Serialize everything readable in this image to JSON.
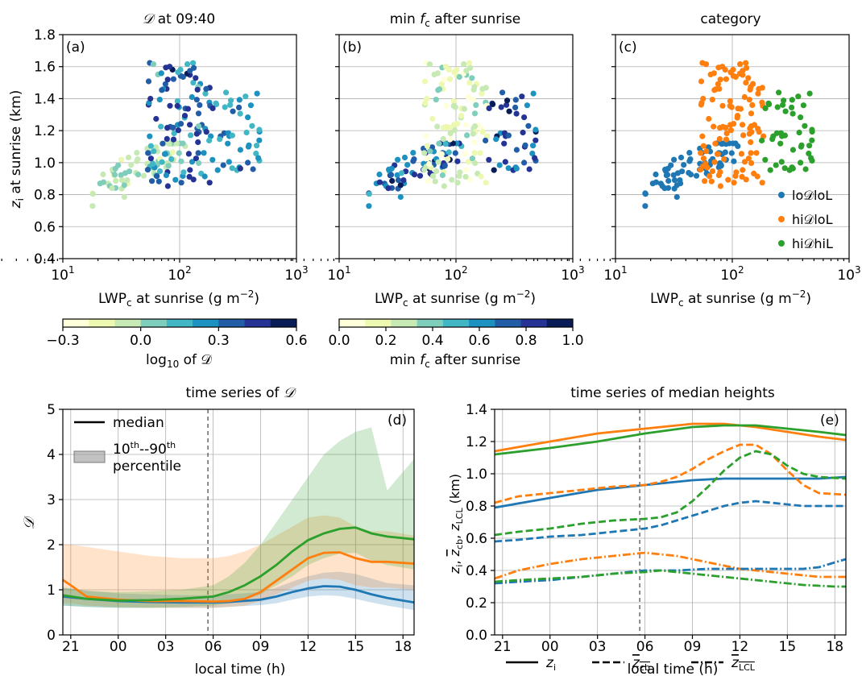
{
  "colors": {
    "lo": "#1f77b4",
    "hiLoL": "#ff7f0e",
    "hiHiL": "#2ca02c",
    "viridis_like": [
      "#ffffd9",
      "#edf8b1",
      "#c7e9b4",
      "#7fcdbb",
      "#41b6c4",
      "#1d91c0",
      "#225ea8",
      "#253494",
      "#081d58"
    ]
  },
  "chart_data": [
    {
      "panel_label": "(a)",
      "type": "scatter",
      "title_prefix": "𝒟",
      "title_suffix": " at 09:40",
      "xlabel": "LWP",
      "xlabel_sub": "c",
      "xlabel_tail": " at sunrise (g m",
      "xlabel_sup": "−2",
      "xlabel_close": ")",
      "ylabel": "z",
      "ylabel_sub": "i",
      "ylabel_tail": " at sunrise (km)",
      "xscale": "log",
      "xlim": [
        10,
        1000
      ],
      "ylim": [
        0.4,
        1.8
      ],
      "xticks": [
        "10",
        "10",
        "10"
      ],
      "xticks_sup": [
        "1",
        "2",
        "3"
      ],
      "yticks": [
        "0.4",
        "0.6",
        "0.8",
        "1.0",
        "1.2",
        "1.4",
        "1.6",
        "1.8"
      ],
      "grid": true,
      "colorbar": {
        "label_pre": "log",
        "label_sub": "10",
        "label_post": " of 𝒟",
        "ticks": [
          "−0.3",
          "0.0",
          "0.3",
          "0.6"
        ],
        "range": [
          -0.3,
          0.6
        ]
      }
    },
    {
      "panel_label": "(b)",
      "type": "scatter",
      "title_pre": "min ",
      "title_f": "f",
      "title_sub": "c",
      "title_post": " after sunrise",
      "xscale": "log",
      "xlim": [
        10,
        1000
      ],
      "ylim": [
        0.4,
        1.8
      ],
      "colorbar": {
        "label_pre": "min ",
        "label_f": "f",
        "label_sub": "c",
        "label_post": " after sunrise",
        "ticks": [
          "0.0",
          "0.2",
          "0.4",
          "0.6",
          "0.8",
          "1.0"
        ],
        "range": [
          0,
          1
        ]
      }
    },
    {
      "panel_label": "(c)",
      "type": "scatter",
      "title": "category",
      "xscale": "log",
      "xlim": [
        10,
        1000
      ],
      "ylim": [
        0.4,
        1.8
      ],
      "legend_placement": "lower-right",
      "legend": [
        {
          "name": "lo𝒟loL",
          "color_key": "lo"
        },
        {
          "name": "hi𝒟loL",
          "color_key": "hiLoL"
        },
        {
          "name": "hi𝒟hiL",
          "color_key": "hiHiL"
        }
      ],
      "clusters": {
        "lo": {
          "logx_range": [
            1.25,
            2.05
          ],
          "y_center_fn": "0.4 + 0.38*logx",
          "spread": 0.12
        },
        "hiLoL": {
          "logx_range": [
            1.75,
            2.3
          ],
          "y_range": [
            0.85,
            1.65
          ]
        },
        "hiHiL": {
          "logx_range": [
            2.25,
            2.7
          ],
          "y_range": [
            0.95,
            1.45
          ]
        }
      }
    },
    {
      "panel_label": "(d)",
      "type": "line",
      "title_pre": "time series of ",
      "title_d": "𝒟",
      "xlabel": "local time (h)",
      "ylabel": "𝒟",
      "xlim": [
        20.5,
        42.7
      ],
      "ylim": [
        0,
        5
      ],
      "xticks": [
        "21",
        "00",
        "03",
        "06",
        "09",
        "12",
        "15",
        "18"
      ],
      "xtick_values": [
        21,
        24,
        27,
        30,
        33,
        36,
        39,
        42
      ],
      "yticks": [
        "0",
        "1",
        "2",
        "3",
        "4",
        "5"
      ],
      "vline_at": 29.67,
      "legend": {
        "median": "median",
        "pct_a": "10",
        "pct_a_sup": "th",
        "pct_sep": "--90",
        "pct_b_sup": "th",
        "pct_line2": "percentile"
      },
      "series": [
        {
          "color_key": "lo",
          "x": [
            20.5,
            22,
            24,
            26,
            28,
            30,
            31,
            33,
            34,
            35,
            36,
            37,
            38,
            39,
            40,
            41,
            42.7
          ],
          "median": [
            0.85,
            0.8,
            0.75,
            0.73,
            0.72,
            0.72,
            0.73,
            0.78,
            0.85,
            0.95,
            1.03,
            1.08,
            1.07,
            1.0,
            0.9,
            0.82,
            0.72
          ],
          "p10": [
            0.65,
            0.62,
            0.6,
            0.6,
            0.6,
            0.6,
            0.62,
            0.66,
            0.7,
            0.78,
            0.85,
            0.88,
            0.86,
            0.8,
            0.72,
            0.65,
            0.55
          ],
          "p90": [
            1.05,
            0.98,
            0.92,
            0.9,
            0.88,
            0.88,
            0.9,
            0.95,
            1.05,
            1.18,
            1.3,
            1.38,
            1.4,
            1.35,
            1.25,
            1.15,
            1.1
          ]
        },
        {
          "color_key": "hiLoL",
          "x": [
            20.5,
            21,
            22,
            24,
            26,
            28,
            30,
            31,
            32,
            33,
            34,
            35,
            36,
            37,
            38,
            39,
            40,
            41,
            42.7
          ],
          "median": [
            1.22,
            1.1,
            0.85,
            0.78,
            0.75,
            0.75,
            0.74,
            0.75,
            0.8,
            0.95,
            1.2,
            1.45,
            1.7,
            1.82,
            1.83,
            1.7,
            1.62,
            1.62,
            1.58
          ],
          "p10": [
            0.7,
            0.7,
            0.65,
            0.62,
            0.6,
            0.6,
            0.6,
            0.62,
            0.65,
            0.75,
            0.9,
            1.05,
            1.2,
            1.25,
            1.22,
            1.1,
            1.05,
            1.05,
            1.0
          ],
          "p90": [
            2.0,
            2.0,
            1.95,
            1.85,
            1.75,
            1.7,
            1.7,
            1.75,
            1.85,
            2.0,
            2.2,
            2.4,
            2.6,
            2.65,
            2.6,
            2.4,
            2.3,
            2.3,
            2.2
          ]
        },
        {
          "color_key": "hiHiL",
          "x": [
            20.5,
            22,
            24,
            26,
            28,
            30,
            31,
            32,
            33,
            34,
            35,
            36,
            37,
            38,
            39,
            40,
            41,
            42.7
          ],
          "median": [
            0.88,
            0.8,
            0.76,
            0.77,
            0.8,
            0.85,
            0.95,
            1.1,
            1.3,
            1.55,
            1.85,
            2.1,
            2.25,
            2.35,
            2.38,
            2.25,
            2.18,
            2.12
          ],
          "p10": [
            0.65,
            0.62,
            0.6,
            0.6,
            0.62,
            0.65,
            0.7,
            0.78,
            0.9,
            1.1,
            1.3,
            1.55,
            1.7,
            1.8,
            1.82,
            1.65,
            1.55,
            1.45
          ],
          "p90": [
            1.05,
            0.98,
            0.95,
            0.97,
            1.0,
            1.1,
            1.3,
            1.6,
            2.0,
            2.5,
            3.0,
            3.5,
            4.0,
            4.3,
            4.5,
            4.6,
            3.2,
            3.9
          ]
        }
      ]
    },
    {
      "panel_label": "(e)",
      "type": "line",
      "title": "time series of median heights",
      "xlabel": "local time (h)",
      "ylabel": "z",
      "ylabel_sub": "i",
      "ylabel_mid": ", ",
      "ylabel_cb": "z",
      "ylabel_cb_sub": "cb",
      "ylabel_lcl": "z",
      "ylabel_lcl_sub": "LCL",
      "ylabel_tail": " (km)",
      "xlim": [
        20.5,
        42.7
      ],
      "ylim": [
        0,
        1.4
      ],
      "xticks": [
        "21",
        "00",
        "03",
        "06",
        "09",
        "12",
        "15",
        "18"
      ],
      "xtick_values": [
        21,
        24,
        27,
        30,
        33,
        36,
        39,
        42
      ],
      "yticks": [
        "0.0",
        "0.2",
        "0.4",
        "0.6",
        "0.8",
        "1.0",
        "1.2",
        "1.4"
      ],
      "vline_at": 29.67,
      "legend": [
        {
          "style": "solid",
          "label": "z",
          "sub": "i"
        },
        {
          "style": "dashed",
          "label": "z",
          "sub": "cb",
          "overline": true
        },
        {
          "style": "dashdot",
          "label": "z",
          "sub": "LCL",
          "overline": true
        }
      ],
      "series": [
        {
          "color_key": "hiLoL",
          "style": "solid",
          "x": [
            20.5,
            24,
            27,
            30,
            33,
            35,
            37,
            39,
            41,
            42.7
          ],
          "y": [
            1.14,
            1.2,
            1.25,
            1.28,
            1.31,
            1.31,
            1.29,
            1.26,
            1.23,
            1.21
          ]
        },
        {
          "color_key": "hiHiL",
          "style": "solid",
          "x": [
            20.5,
            24,
            27,
            30,
            33,
            35,
            37,
            39,
            41,
            42.7
          ],
          "y": [
            1.12,
            1.16,
            1.2,
            1.25,
            1.29,
            1.3,
            1.3,
            1.28,
            1.26,
            1.24
          ]
        },
        {
          "color_key": "lo",
          "style": "solid",
          "x": [
            20.5,
            24,
            27,
            30,
            33,
            35,
            37,
            39,
            41,
            42.7
          ],
          "y": [
            0.79,
            0.85,
            0.9,
            0.93,
            0.96,
            0.97,
            0.97,
            0.97,
            0.97,
            0.98
          ]
        },
        {
          "color_key": "hiLoL",
          "style": "dashed",
          "x": [
            20.5,
            22,
            24,
            26,
            28,
            30,
            31,
            32,
            33,
            34,
            35,
            36,
            37,
            38,
            39,
            40,
            41,
            42.7
          ],
          "y": [
            0.82,
            0.86,
            0.88,
            0.9,
            0.92,
            0.93,
            0.95,
            0.98,
            1.03,
            1.09,
            1.14,
            1.18,
            1.18,
            1.12,
            1.02,
            0.93,
            0.88,
            0.87
          ]
        },
        {
          "color_key": "hiHiL",
          "style": "dashed",
          "x": [
            20.5,
            22,
            24,
            26,
            28,
            30,
            31,
            32,
            33,
            34,
            35,
            36,
            37,
            38,
            39,
            40,
            41,
            42.7
          ],
          "y": [
            0.62,
            0.64,
            0.66,
            0.69,
            0.71,
            0.72,
            0.73,
            0.76,
            0.83,
            0.92,
            1.02,
            1.1,
            1.14,
            1.12,
            1.05,
            1.0,
            0.98,
            0.97
          ]
        },
        {
          "color_key": "lo",
          "style": "dashed",
          "x": [
            20.5,
            22,
            24,
            26,
            28,
            30,
            31,
            32,
            33,
            34,
            35,
            36,
            37,
            38,
            39,
            40,
            41,
            42.7
          ],
          "y": [
            0.58,
            0.59,
            0.61,
            0.62,
            0.64,
            0.66,
            0.68,
            0.71,
            0.74,
            0.77,
            0.8,
            0.82,
            0.83,
            0.82,
            0.81,
            0.8,
            0.8,
            0.8
          ]
        },
        {
          "color_key": "hiLoL",
          "style": "dashdot",
          "x": [
            20.5,
            22,
            24,
            26,
            28,
            29,
            30,
            31,
            32,
            33,
            34,
            35,
            36,
            37,
            38,
            39,
            40,
            41,
            42.7
          ],
          "y": [
            0.35,
            0.4,
            0.44,
            0.47,
            0.49,
            0.5,
            0.51,
            0.5,
            0.49,
            0.47,
            0.45,
            0.43,
            0.41,
            0.4,
            0.39,
            0.38,
            0.37,
            0.36,
            0.36
          ]
        },
        {
          "color_key": "lo",
          "style": "dashdot",
          "x": [
            20.5,
            22,
            24,
            26,
            28,
            30,
            32,
            34,
            36,
            38,
            39,
            40,
            41,
            42,
            42.7
          ],
          "y": [
            0.32,
            0.33,
            0.34,
            0.36,
            0.38,
            0.4,
            0.4,
            0.41,
            0.41,
            0.41,
            0.41,
            0.41,
            0.42,
            0.45,
            0.47
          ]
        },
        {
          "color_key": "hiHiL",
          "style": "dashdot",
          "x": [
            20.5,
            22,
            24,
            26,
            28,
            30,
            31,
            32,
            34,
            36,
            38,
            40,
            42,
            42.7
          ],
          "y": [
            0.33,
            0.34,
            0.35,
            0.36,
            0.38,
            0.39,
            0.4,
            0.39,
            0.37,
            0.35,
            0.33,
            0.31,
            0.3,
            0.3
          ]
        }
      ]
    }
  ]
}
